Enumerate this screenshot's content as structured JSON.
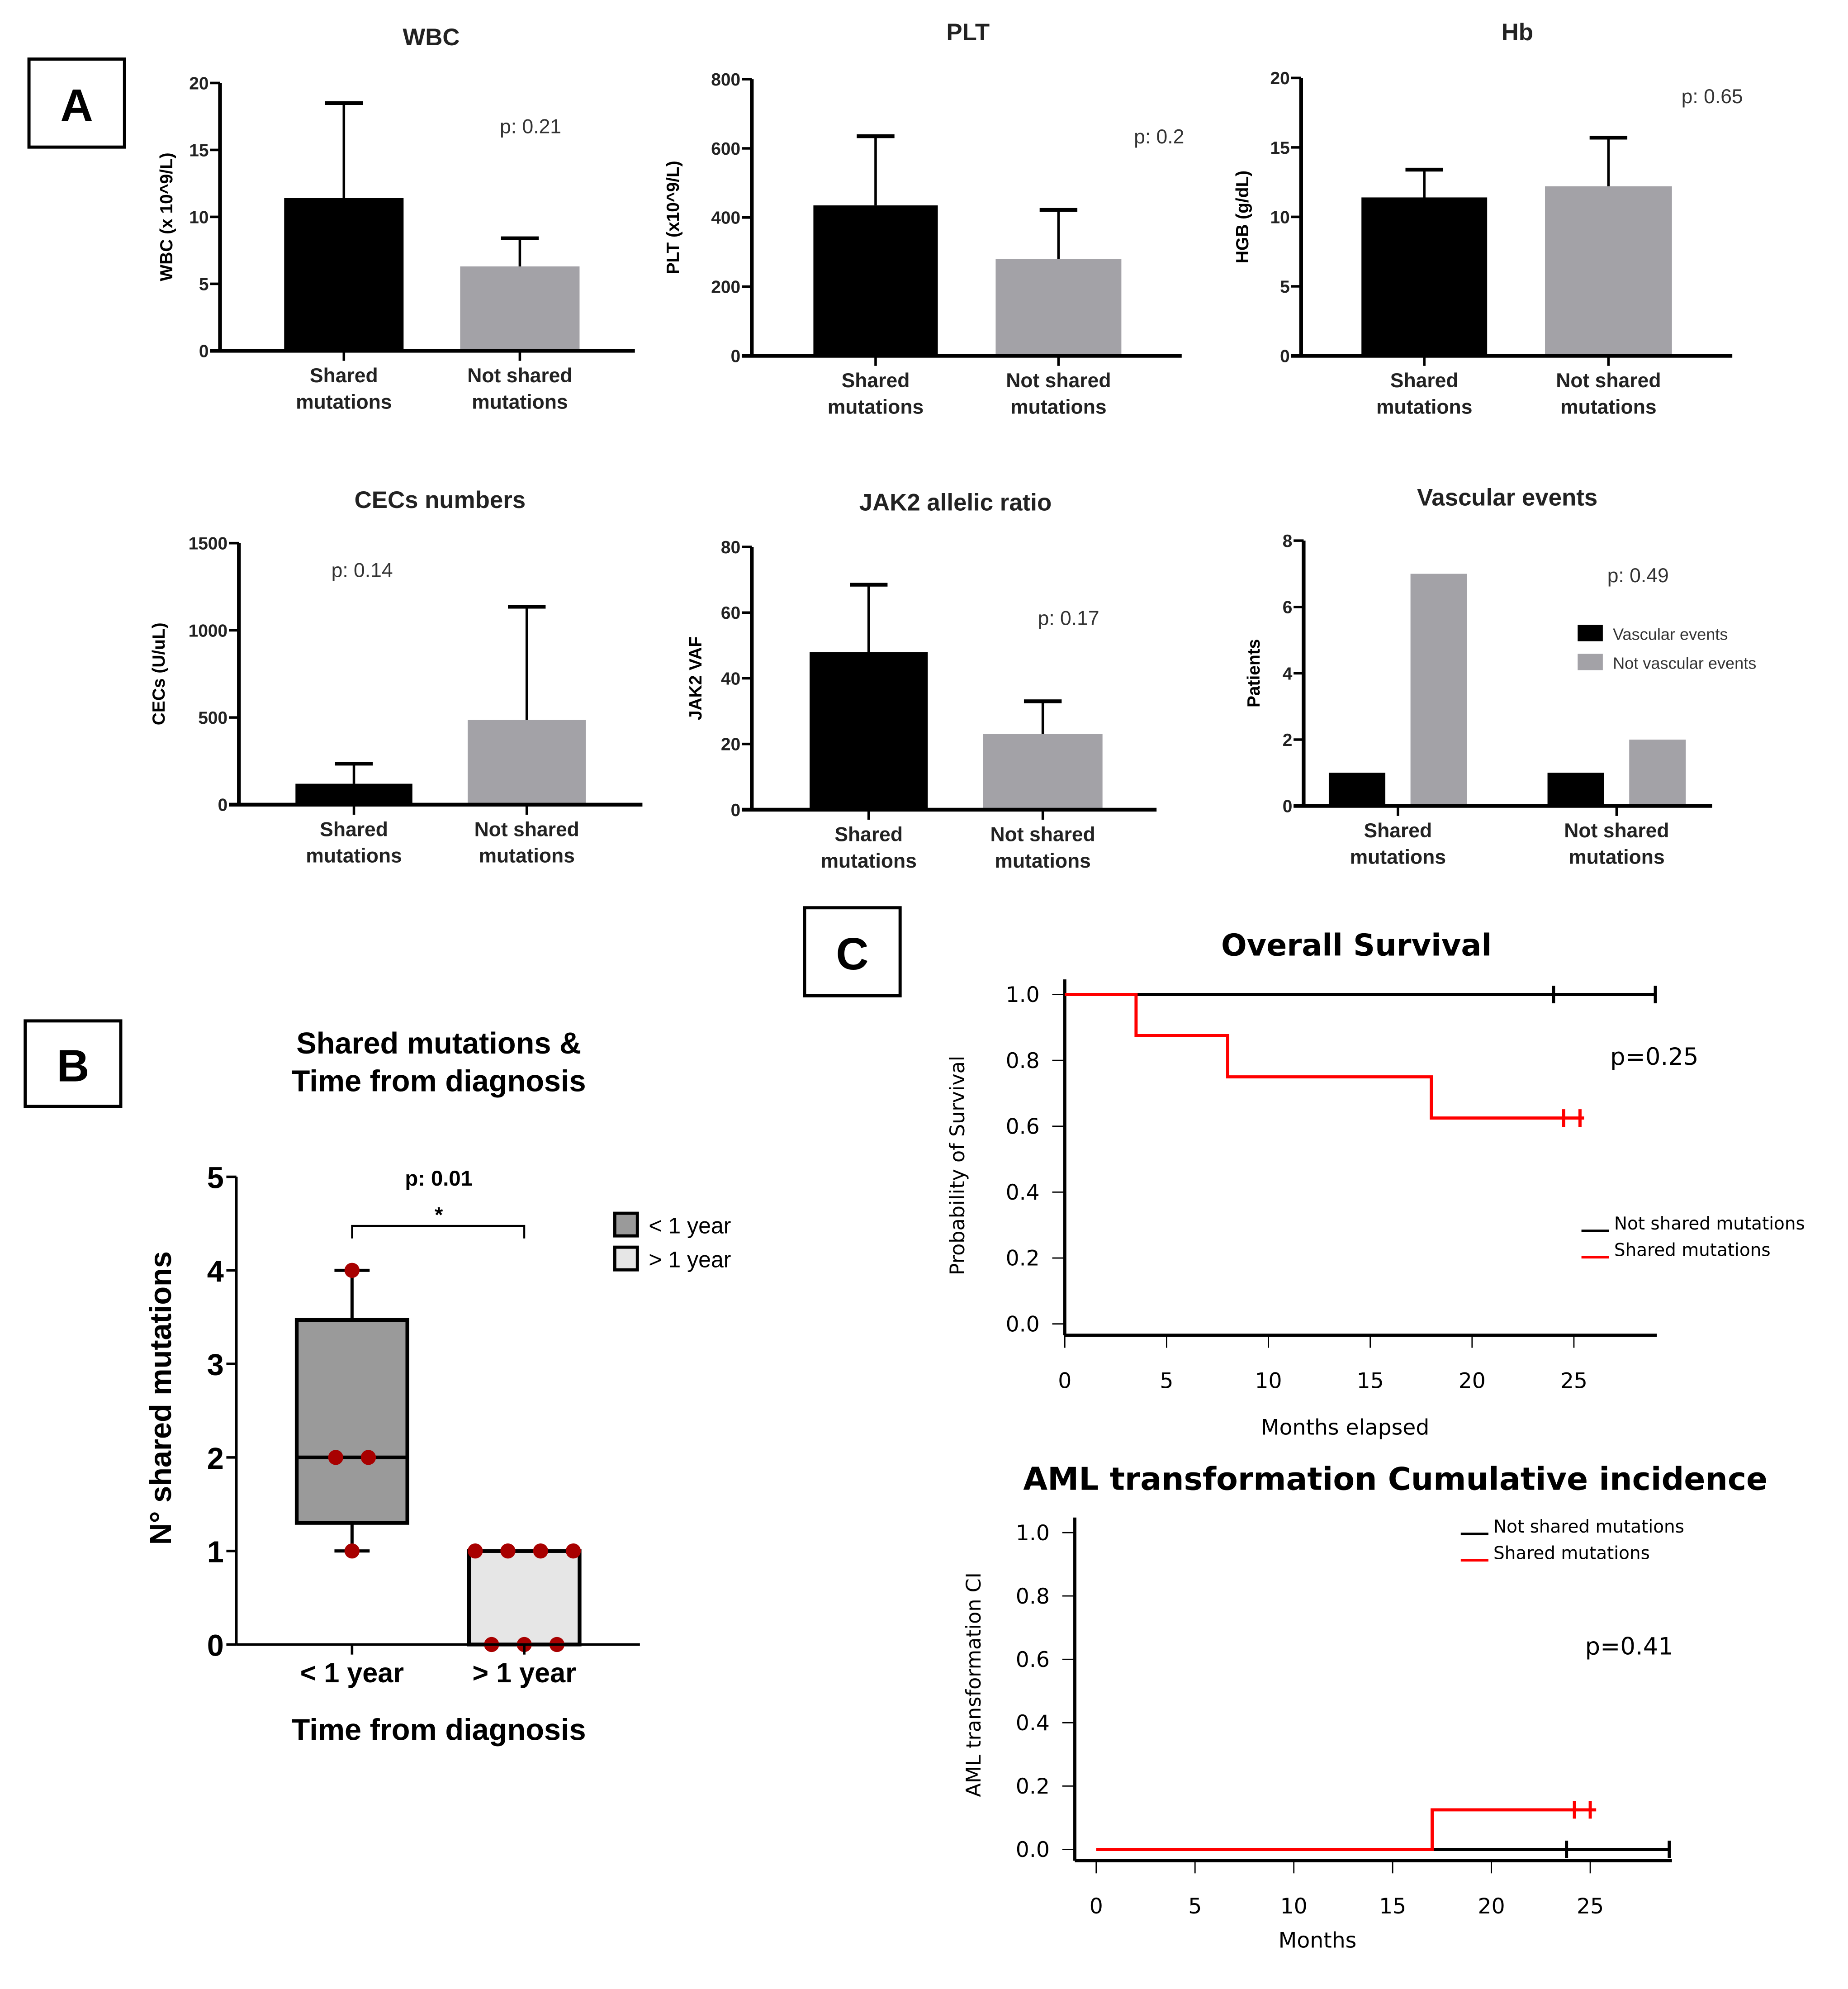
{
  "panel_labels": [
    "A",
    "B",
    "C"
  ],
  "colors": {
    "black": "#000000",
    "gray": "#a3a2a7",
    "light_box": "#e6e6e6",
    "dark_box": "#9a9a9a",
    "red": "#ff0000",
    "dot": "#a80000"
  },
  "chart_data": [
    {
      "type": "bar",
      "title": "WBC",
      "ylabel": "WBC (x 10^9/L)",
      "categories": [
        "Shared mutations",
        "Not shared mutations"
      ],
      "values": [
        11.4,
        6.3
      ],
      "error_upper": [
        18.5,
        8.4
      ],
      "ylim": [
        0,
        20
      ],
      "yticks": [
        0,
        5,
        10,
        15,
        20
      ],
      "annotation": "p: 0.21"
    },
    {
      "type": "bar",
      "title": "PLT",
      "ylabel": "PLT (x10^9/L)",
      "categories": [
        "Shared mutations",
        "Not shared mutations"
      ],
      "values": [
        435,
        280
      ],
      "error_upper": [
        635,
        422
      ],
      "ylim": [
        0,
        800
      ],
      "yticks": [
        0,
        200,
        400,
        600,
        800
      ],
      "annotation": "p: 0.2"
    },
    {
      "type": "bar",
      "title": "Hb",
      "ylabel": "HGB (g/dL)",
      "categories": [
        "Shared mutations",
        "Not shared mutations"
      ],
      "values": [
        11.4,
        12.2
      ],
      "error_upper": [
        13.4,
        15.7
      ],
      "ylim": [
        0,
        20
      ],
      "yticks": [
        0,
        5,
        10,
        15,
        20
      ],
      "annotation": "p: 0.65"
    },
    {
      "type": "bar",
      "title": "CECs numbers",
      "ylabel": "CECs (U/uL)",
      "categories": [
        "Shared mutations",
        "Not shared mutations"
      ],
      "values": [
        120,
        485
      ],
      "error_upper": [
        235,
        1135
      ],
      "ylim": [
        0,
        1500
      ],
      "yticks": [
        0,
        500,
        1000,
        1500
      ],
      "annotation": "p: 0.14"
    },
    {
      "type": "bar",
      "title": "JAK2 allelic ratio",
      "ylabel": "JAK2 VAF",
      "categories": [
        "Shared mutations",
        "Not shared mutations"
      ],
      "values": [
        48,
        23
      ],
      "error_upper": [
        68.5,
        33
      ],
      "ylim": [
        0,
        80
      ],
      "yticks": [
        0,
        20,
        40,
        60,
        80
      ],
      "annotation": "p: 0.17"
    },
    {
      "type": "bar",
      "title": "Vascular events",
      "ylabel": "Patients",
      "categories": [
        "Shared mutations",
        "Not shared mutations"
      ],
      "series": [
        {
          "name": "Vascular events",
          "values": [
            1,
            1
          ]
        },
        {
          "name": "Not vascular events",
          "values": [
            7,
            2
          ]
        }
      ],
      "ylim": [
        0,
        8
      ],
      "yticks": [
        0,
        2,
        4,
        6,
        8
      ],
      "annotation": "p: 0.49",
      "legend": "right"
    },
    {
      "type": "box",
      "title": "Shared mutations & Time from diagnosis",
      "title_lines": [
        "Shared mutations &",
        "Time from diagnosis"
      ],
      "xlabel": "Time from diagnosis",
      "ylabel": "N° shared mutations",
      "categories": [
        "< 1 year",
        "> 1 year"
      ],
      "legend": [
        "< 1 year",
        "> 1 year"
      ],
      "ylim": [
        0,
        5
      ],
      "yticks": [
        0,
        1,
        2,
        3,
        4,
        5
      ],
      "boxes": [
        {
          "min": 1,
          "q1": 1.3,
          "median": 2,
          "q3": 3.47,
          "max": 4,
          "points": [
            4,
            2,
            2,
            1
          ]
        },
        {
          "min": 0,
          "q1": 0,
          "median": 1,
          "q3": 1,
          "max": 1,
          "points": [
            1,
            1,
            1,
            1,
            0,
            0,
            0
          ]
        }
      ],
      "annotation": "p: 0.01",
      "significance": "*"
    },
    {
      "type": "line",
      "title": "Overall Survival",
      "xlabel": "Months elapsed",
      "ylabel": "Probability of Survival",
      "xlim": [
        0,
        29
      ],
      "ylim": [
        0,
        1
      ],
      "xticks": [
        0,
        5,
        10,
        15,
        20,
        25
      ],
      "yticks": [
        "0.0",
        "0.2",
        "0.4",
        "0.6",
        "0.8",
        "1.0"
      ],
      "annotation": "p=0.25",
      "series": [
        {
          "name": "Not shared mutations",
          "steps": [
            [
              0,
              1.0
            ],
            [
              29,
              1.0
            ]
          ],
          "censored": [
            24,
            29
          ]
        },
        {
          "name": "Shared mutations",
          "steps": [
            [
              0,
              1.0
            ],
            [
              3.5,
              0.875
            ],
            [
              8,
              0.75
            ],
            [
              18,
              0.625
            ],
            [
              25.5,
              0.625
            ]
          ],
          "censored": [
            24.5,
            25.3
          ]
        }
      ]
    },
    {
      "type": "line",
      "title": "AML transformation Cumulative incidence",
      "xlabel": "Months",
      "ylabel": "AML transformation CI",
      "xlim": [
        0,
        29
      ],
      "ylim": [
        0,
        1
      ],
      "xticks": [
        0,
        5,
        10,
        15,
        20,
        25
      ],
      "yticks": [
        "0.0",
        "0.2",
        "0.4",
        "0.6",
        "0.8",
        "1.0"
      ],
      "annotation": "p=0.41",
      "series": [
        {
          "name": "Not shared mutations",
          "steps": [
            [
              17,
              0
            ],
            [
              29,
              0
            ]
          ],
          "censored": [
            23.8,
            29
          ]
        },
        {
          "name": "Shared mutations",
          "steps": [
            [
              0,
              0
            ],
            [
              17,
              0.125
            ],
            [
              25.3,
              0.125
            ]
          ],
          "censored": [
            24.2,
            25
          ]
        }
      ]
    }
  ]
}
